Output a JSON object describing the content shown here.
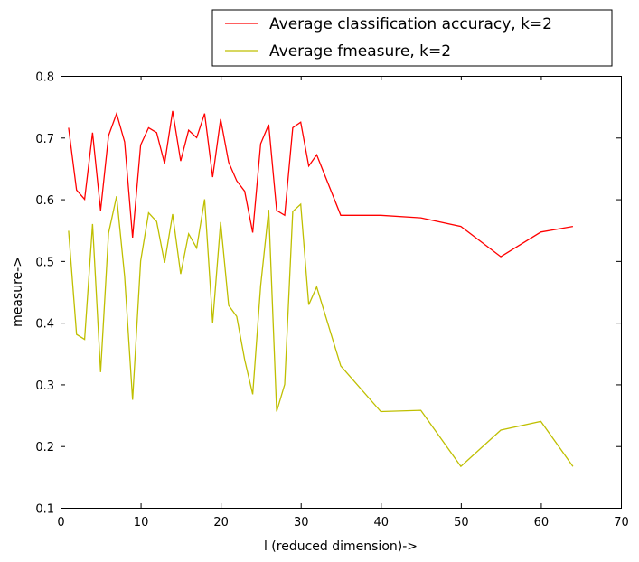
{
  "chart_data": {
    "type": "line",
    "title": "",
    "xlabel": "l (reduced dimension)->",
    "ylabel": "measure->",
    "xlim": [
      0,
      70
    ],
    "ylim": [
      0.1,
      0.8
    ],
    "xticks": [
      0,
      10,
      20,
      30,
      40,
      50,
      60,
      70
    ],
    "yticks": [
      0.1,
      0.2,
      0.3,
      0.4,
      0.5,
      0.6,
      0.7,
      0.8
    ],
    "grid": false,
    "legend_position": "top-right (outside above plot)",
    "series": [
      {
        "name": "Average classification accuracy, k=2",
        "color": "#ff0000",
        "x": [
          1,
          2,
          3,
          4,
          5,
          6,
          7,
          8,
          9,
          10,
          11,
          12,
          13,
          14,
          15,
          16,
          17,
          18,
          19,
          20,
          21,
          22,
          23,
          24,
          25,
          26,
          27,
          28,
          29,
          30,
          31,
          32,
          35,
          40,
          45,
          50,
          55,
          60,
          64
        ],
        "y": [
          0.716,
          0.615,
          0.6,
          0.708,
          0.582,
          0.703,
          0.739,
          0.693,
          0.538,
          0.688,
          0.716,
          0.708,
          0.658,
          0.743,
          0.662,
          0.712,
          0.7,
          0.739,
          0.636,
          0.73,
          0.66,
          0.63,
          0.613,
          0.546,
          0.69,
          0.721,
          0.582,
          0.574,
          0.716,
          0.725,
          0.654,
          0.672,
          0.574,
          0.574,
          0.57,
          0.556,
          0.507,
          0.547,
          0.556
        ]
      },
      {
        "name": "Average fmeasure, k=2",
        "color": "#bfbf00",
        "x": [
          1,
          2,
          3,
          4,
          5,
          6,
          7,
          8,
          9,
          10,
          11,
          12,
          13,
          14,
          15,
          16,
          17,
          18,
          19,
          20,
          21,
          22,
          23,
          24,
          25,
          26,
          27,
          28,
          29,
          30,
          31,
          32,
          35,
          40,
          45,
          50,
          55,
          60,
          64
        ],
        "y": [
          0.549,
          0.381,
          0.373,
          0.56,
          0.32,
          0.545,
          0.605,
          0.475,
          0.275,
          0.5,
          0.578,
          0.564,
          0.497,
          0.576,
          0.479,
          0.544,
          0.521,
          0.6,
          0.4,
          0.563,
          0.428,
          0.41,
          0.34,
          0.284,
          0.46,
          0.583,
          0.256,
          0.3,
          0.58,
          0.592,
          0.429,
          0.458,
          0.33,
          0.256,
          0.258,
          0.167,
          0.226,
          0.24,
          0.167
        ]
      }
    ]
  }
}
